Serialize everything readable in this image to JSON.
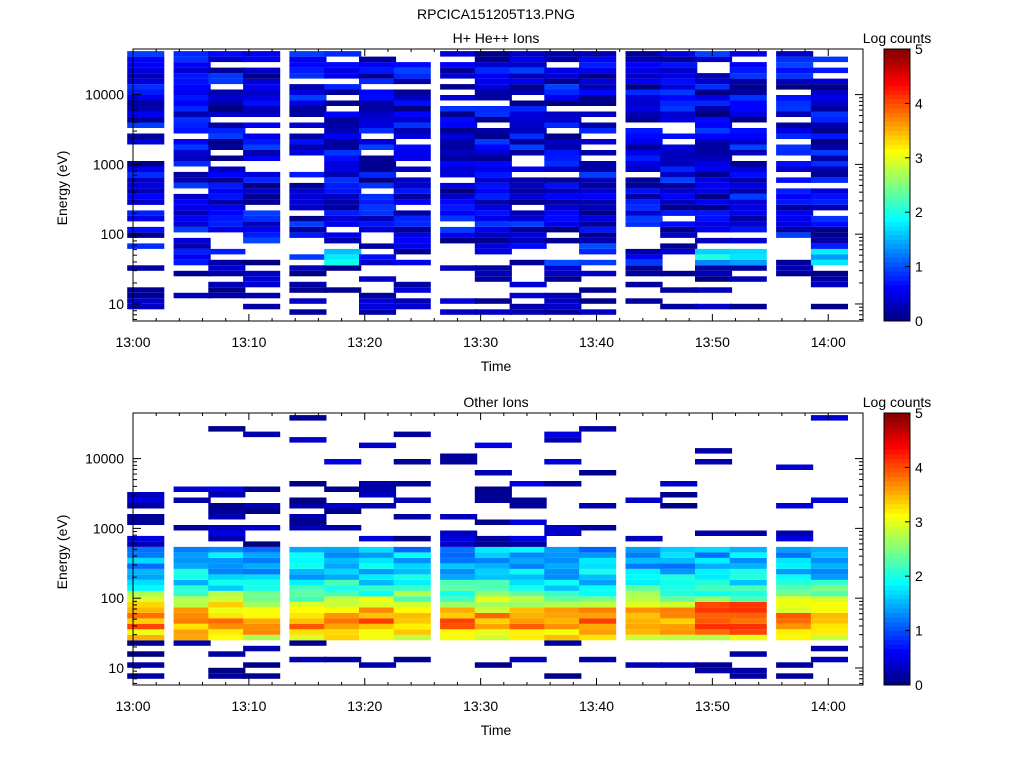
{
  "page_title": "RPCICA151205T13.PNG",
  "chart_data": [
    {
      "type": "heatmap",
      "title": "H+ He++ Ions",
      "xlabel": "Time",
      "ylabel": "Energy (eV)",
      "x_ticks": [
        "13:00",
        "13:10",
        "13:20",
        "13:30",
        "13:40",
        "13:50",
        "14:00"
      ],
      "x_range": [
        "13:00",
        "14:03"
      ],
      "y_scale": "log",
      "y_ticks": [
        "10",
        "100",
        "1000",
        "10000"
      ],
      "y_range": [
        5.7,
        45000
      ],
      "colorbar": {
        "label": "Log counts",
        "ticks": [
          "0",
          "1",
          "2",
          "3",
          "4",
          "5"
        ],
        "range": [
          0,
          5
        ],
        "colormap": "jet"
      },
      "time_bins": [
        "13:01",
        "13:05",
        "13:08",
        "13:11",
        "13:15",
        "13:18",
        "13:21",
        "13:24",
        "13:28",
        "13:31",
        "13:34",
        "13:37",
        "13:40",
        "13:44",
        "13:47",
        "13:50",
        "13:53",
        "13:57",
        "14:00"
      ],
      "approx_counts": [
        {
          "energy_ev": "100-40000",
          "log_counts": "0-1.0 (sparse, all bins)"
        },
        {
          "energy_ev": "40-60",
          "times": [
            "13:18",
            "13:50",
            "13:53",
            "14:00"
          ],
          "log_counts": 1.8
        },
        {
          "energy_ev": "6-35",
          "log_counts": "0-0.5 (sparse)"
        }
      ]
    },
    {
      "type": "heatmap",
      "title": "Other Ions",
      "xlabel": "Time",
      "ylabel": "Energy (eV)",
      "x_ticks": [
        "13:00",
        "13:10",
        "13:20",
        "13:30",
        "13:40",
        "13:50",
        "14:00"
      ],
      "x_range": [
        "13:00",
        "14:03"
      ],
      "y_scale": "log",
      "y_ticks": [
        "10",
        "100",
        "1000",
        "10000"
      ],
      "y_range": [
        5.7,
        45000
      ],
      "colorbar": {
        "label": "Log counts",
        "ticks": [
          "0",
          "1",
          "2",
          "3",
          "4",
          "5"
        ],
        "range": [
          0,
          5
        ],
        "colormap": "jet"
      },
      "time_bins": [
        "13:01",
        "13:05",
        "13:08",
        "13:11",
        "13:15",
        "13:18",
        "13:21",
        "13:24",
        "13:28",
        "13:31",
        "13:34",
        "13:37",
        "13:40",
        "13:44",
        "13:47",
        "13:50",
        "13:53",
        "13:57",
        "14:00"
      ],
      "approx_counts": [
        {
          "energy_ev": "25-500",
          "log_counts": "1.0-3.5 (all bins)"
        },
        {
          "energy_ev": "35-80",
          "times": [
            "13:50",
            "13:53"
          ],
          "log_counts": 4.0
        },
        {
          "energy_ev": "1000-40000",
          "log_counts": "0-0.5 (sparse)"
        },
        {
          "energy_ev": "7-20",
          "log_counts": "0-0.3 (sparse)"
        }
      ]
    }
  ]
}
